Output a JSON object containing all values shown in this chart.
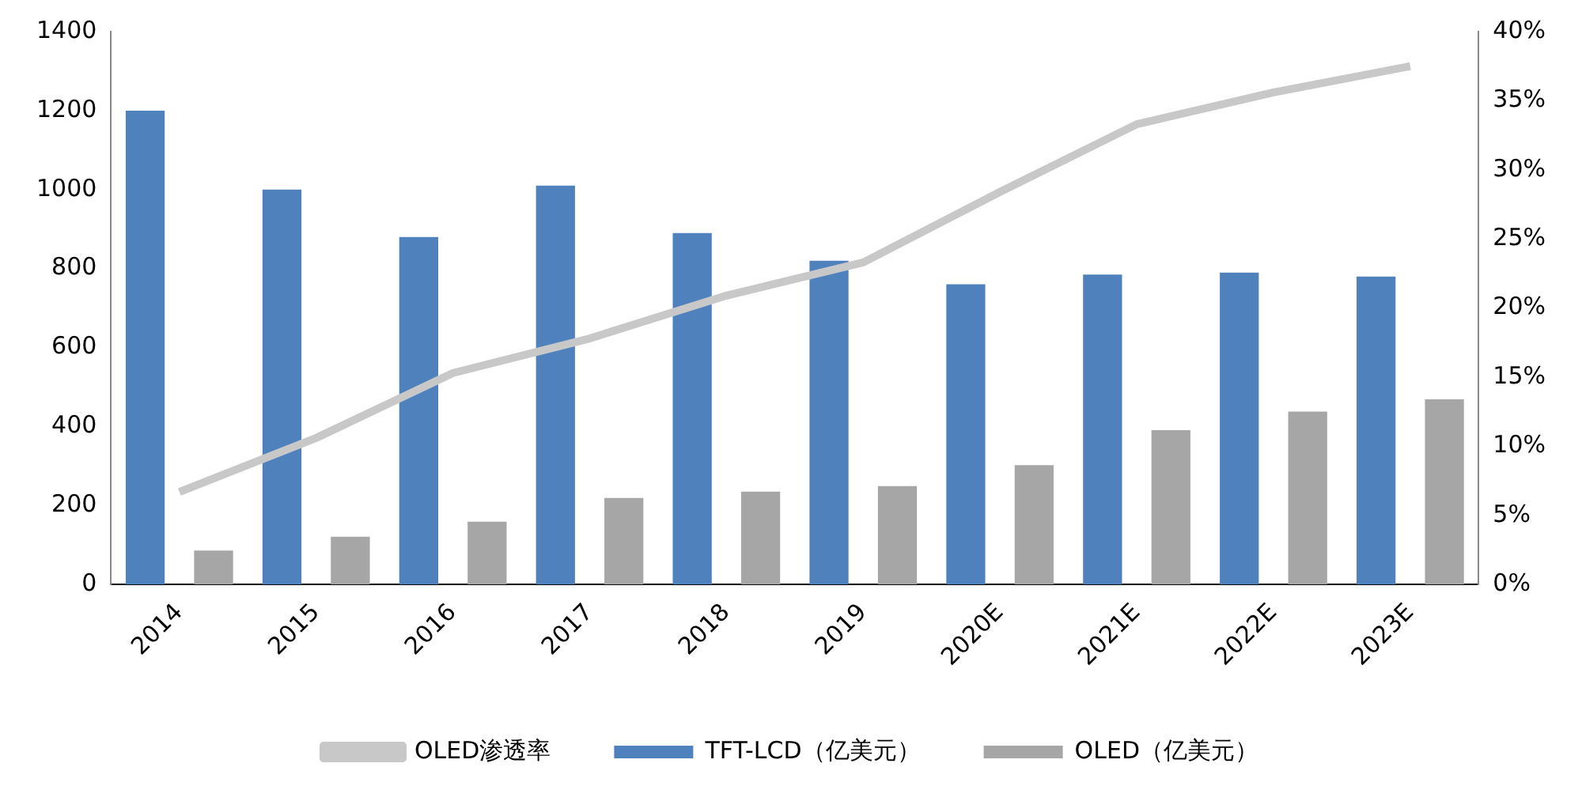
{
  "chart_data": {
    "type": "bar",
    "categories": [
      "2014",
      "2015",
      "2016",
      "2017",
      "2018",
      "2019",
      "2020E",
      "2021E",
      "2022E",
      "2023E"
    ],
    "series": [
      {
        "name": "TFT-LCD（亿美元）",
        "color": "#4f81bd",
        "values": [
          1200,
          1000,
          880,
          1010,
          890,
          820,
          760,
          785,
          790,
          780
        ]
      },
      {
        "name": "OLED（亿美元）",
        "color": "#a6a6a6",
        "values": [
          86,
          121,
          159,
          219,
          235,
          249,
          302,
          391,
          438,
          469
        ]
      },
      {
        "name": "OLED渗透率",
        "type": "line",
        "axis": "y2",
        "color": "#c8c8c8",
        "values": [
          6.7,
          10.6,
          15.3,
          17.8,
          20.9,
          23.3,
          28.4,
          33.3,
          35.6,
          37.5
        ]
      }
    ],
    "ylim": [
      0,
      1400
    ],
    "yticks": [
      0,
      200,
      400,
      600,
      800,
      1000,
      1200,
      1400
    ],
    "y2lim": [
      0,
      40
    ],
    "y2ticks": [
      {
        "value": 0,
        "label": "0%"
      },
      {
        "value": 5,
        "label": "5%"
      },
      {
        "value": 10,
        "label": "10%"
      },
      {
        "value": 15,
        "label": "15%"
      },
      {
        "value": 20,
        "label": "20%"
      },
      {
        "value": 25,
        "label": "25%"
      },
      {
        "value": 30,
        "label": "30%"
      },
      {
        "value": 35,
        "label": "35%"
      },
      {
        "value": 40,
        "label": "40%"
      }
    ],
    "grid": false,
    "legend": "bottom",
    "marker": "none"
  }
}
